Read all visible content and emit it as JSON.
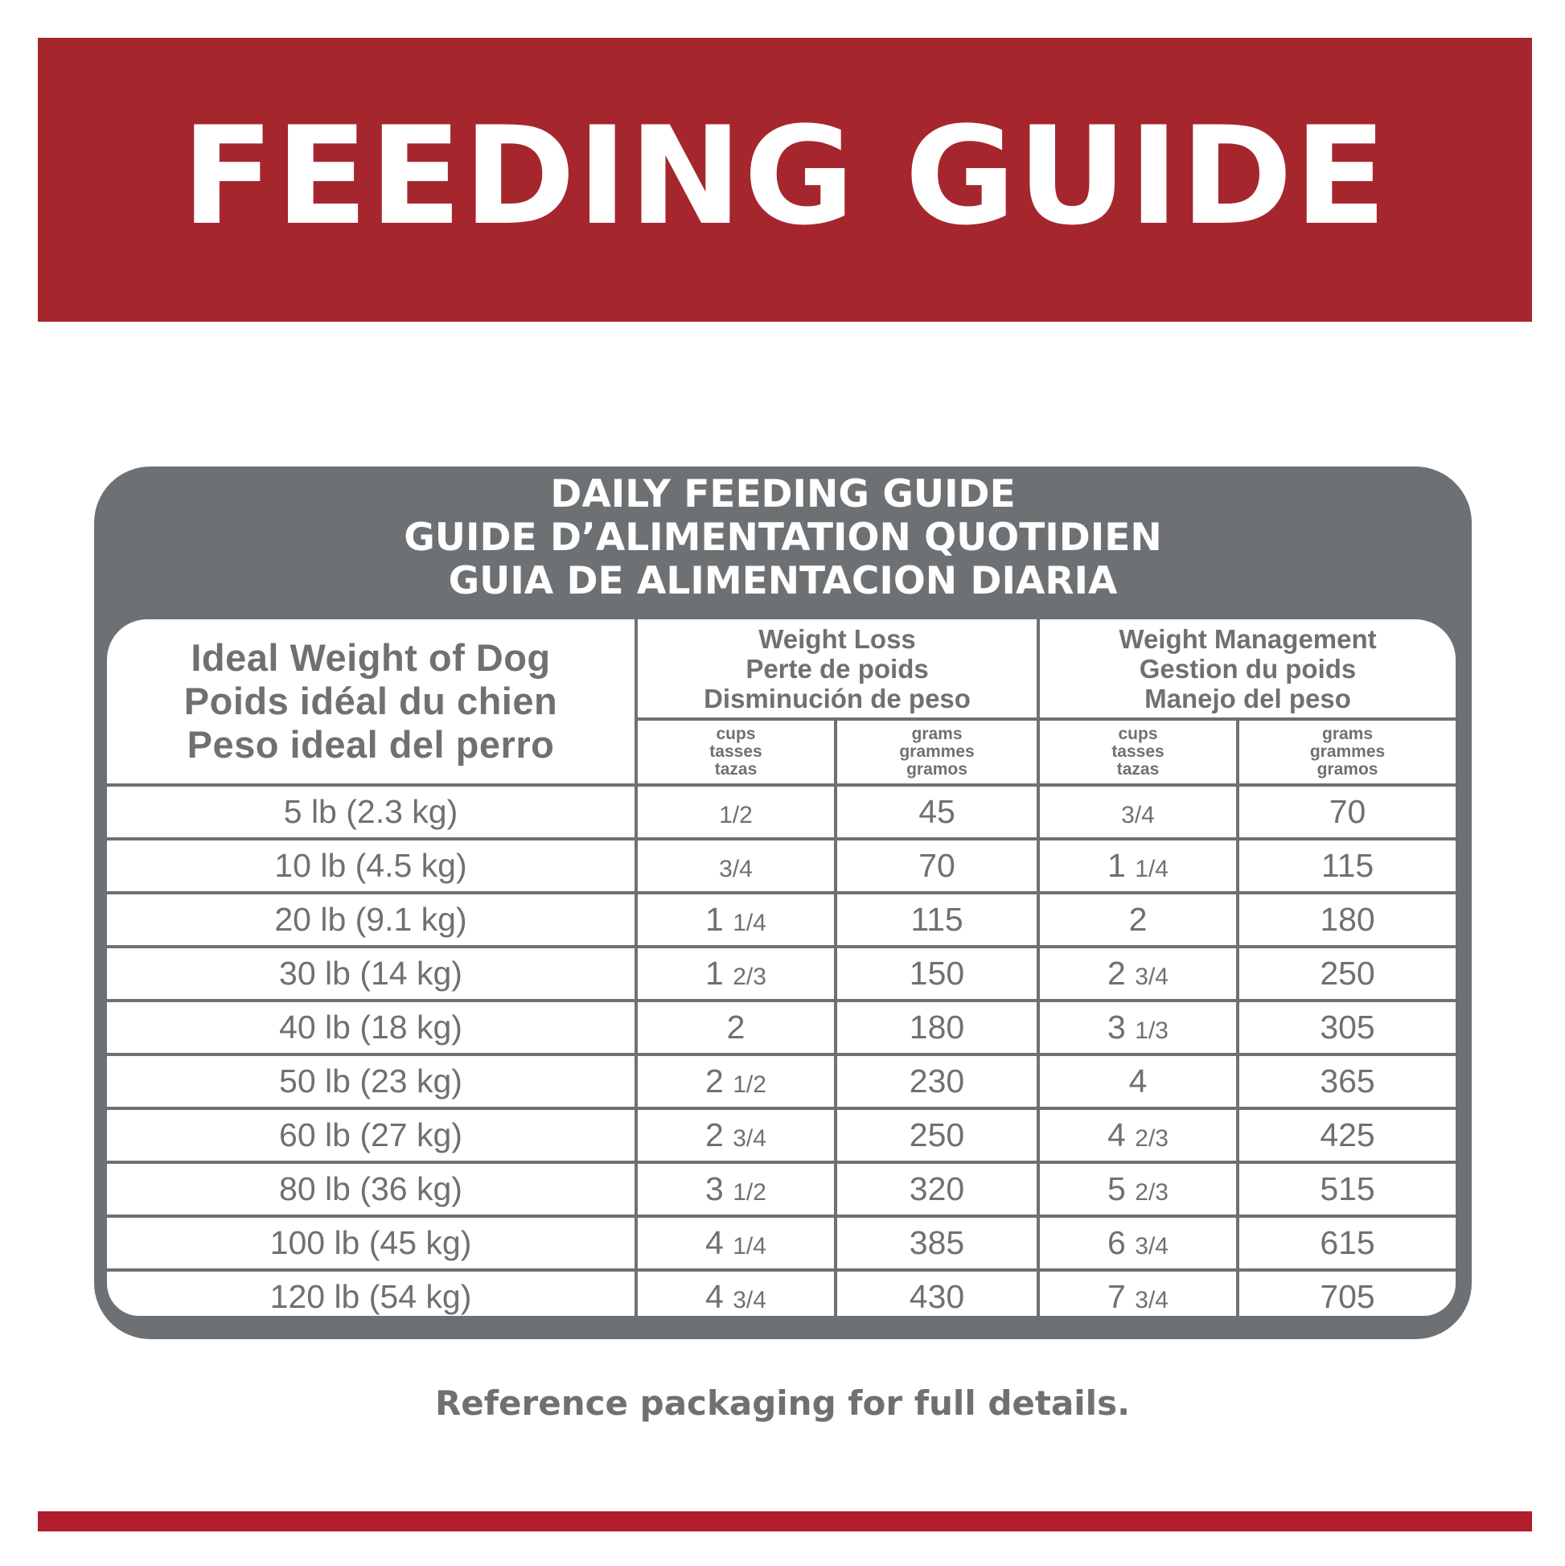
{
  "banner": {
    "title": "FEEDING GUIDE"
  },
  "panel": {
    "title_lines": [
      "DAILY FEEDING GUIDE",
      "GUIDE D’ALIMENTATION QUOTIDIEN",
      "GUIA DE ALIMENTACION DIARIA"
    ]
  },
  "table": {
    "weight_header": [
      "Ideal Weight of Dog",
      "Poids idéal du chien",
      "Peso ideal del perro"
    ],
    "groups": [
      {
        "lines": [
          "Weight Loss",
          "Perte de poids",
          "Disminución de peso"
        ]
      },
      {
        "lines": [
          "Weight Management",
          "Gestion du poids",
          "Manejo del peso"
        ]
      }
    ],
    "units": {
      "cups": [
        "cups",
        "tasses",
        "tazas"
      ],
      "grams": [
        "grams",
        "grammes",
        "gramos"
      ]
    },
    "rows": [
      {
        "weight": "5 lb (2.3 kg)",
        "loss_cups_whole": "",
        "loss_cups_frac": "1/2",
        "loss_grams": "45",
        "mgmt_cups_whole": "",
        "mgmt_cups_frac": "3/4",
        "mgmt_grams": "70"
      },
      {
        "weight": "10 lb (4.5 kg)",
        "loss_cups_whole": "",
        "loss_cups_frac": "3/4",
        "loss_grams": "70",
        "mgmt_cups_whole": "1",
        "mgmt_cups_frac": "1/4",
        "mgmt_grams": "115"
      },
      {
        "weight": "20 lb (9.1 kg)",
        "loss_cups_whole": "1",
        "loss_cups_frac": "1/4",
        "loss_grams": "115",
        "mgmt_cups_whole": "2",
        "mgmt_cups_frac": "",
        "mgmt_grams": "180"
      },
      {
        "weight": "30 lb (14 kg)",
        "loss_cups_whole": "1",
        "loss_cups_frac": "2/3",
        "loss_grams": "150",
        "mgmt_cups_whole": "2",
        "mgmt_cups_frac": "3/4",
        "mgmt_grams": "250"
      },
      {
        "weight": "40 lb (18 kg)",
        "loss_cups_whole": "2",
        "loss_cups_frac": "",
        "loss_grams": "180",
        "mgmt_cups_whole": "3",
        "mgmt_cups_frac": "1/3",
        "mgmt_grams": "305"
      },
      {
        "weight": "50 lb (23 kg)",
        "loss_cups_whole": "2",
        "loss_cups_frac": "1/2",
        "loss_grams": "230",
        "mgmt_cups_whole": "4",
        "mgmt_cups_frac": "",
        "mgmt_grams": "365"
      },
      {
        "weight": "60 lb (27 kg)",
        "loss_cups_whole": "2",
        "loss_cups_frac": "3/4",
        "loss_grams": "250",
        "mgmt_cups_whole": "4",
        "mgmt_cups_frac": "2/3",
        "mgmt_grams": "425"
      },
      {
        "weight": "80 lb (36 kg)",
        "loss_cups_whole": "3",
        "loss_cups_frac": "1/2",
        "loss_grams": "320",
        "mgmt_cups_whole": "5",
        "mgmt_cups_frac": "2/3",
        "mgmt_grams": "515"
      },
      {
        "weight": "100 lb (45 kg)",
        "loss_cups_whole": "4",
        "loss_cups_frac": "1/4",
        "loss_grams": "385",
        "mgmt_cups_whole": "6",
        "mgmt_cups_frac": "3/4",
        "mgmt_grams": "615"
      },
      {
        "weight": "120 lb (54 kg)",
        "loss_cups_whole": "4",
        "loss_cups_frac": "3/4",
        "loss_grams": "430",
        "mgmt_cups_whole": "7",
        "mgmt_cups_frac": "3/4",
        "mgmt_grams": "705"
      }
    ]
  },
  "footnote": "Reference packaging for full details.",
  "colors": {
    "banner": "#a6262e",
    "panel": "#6e7173",
    "bottom_bar": "#b01e2d"
  }
}
